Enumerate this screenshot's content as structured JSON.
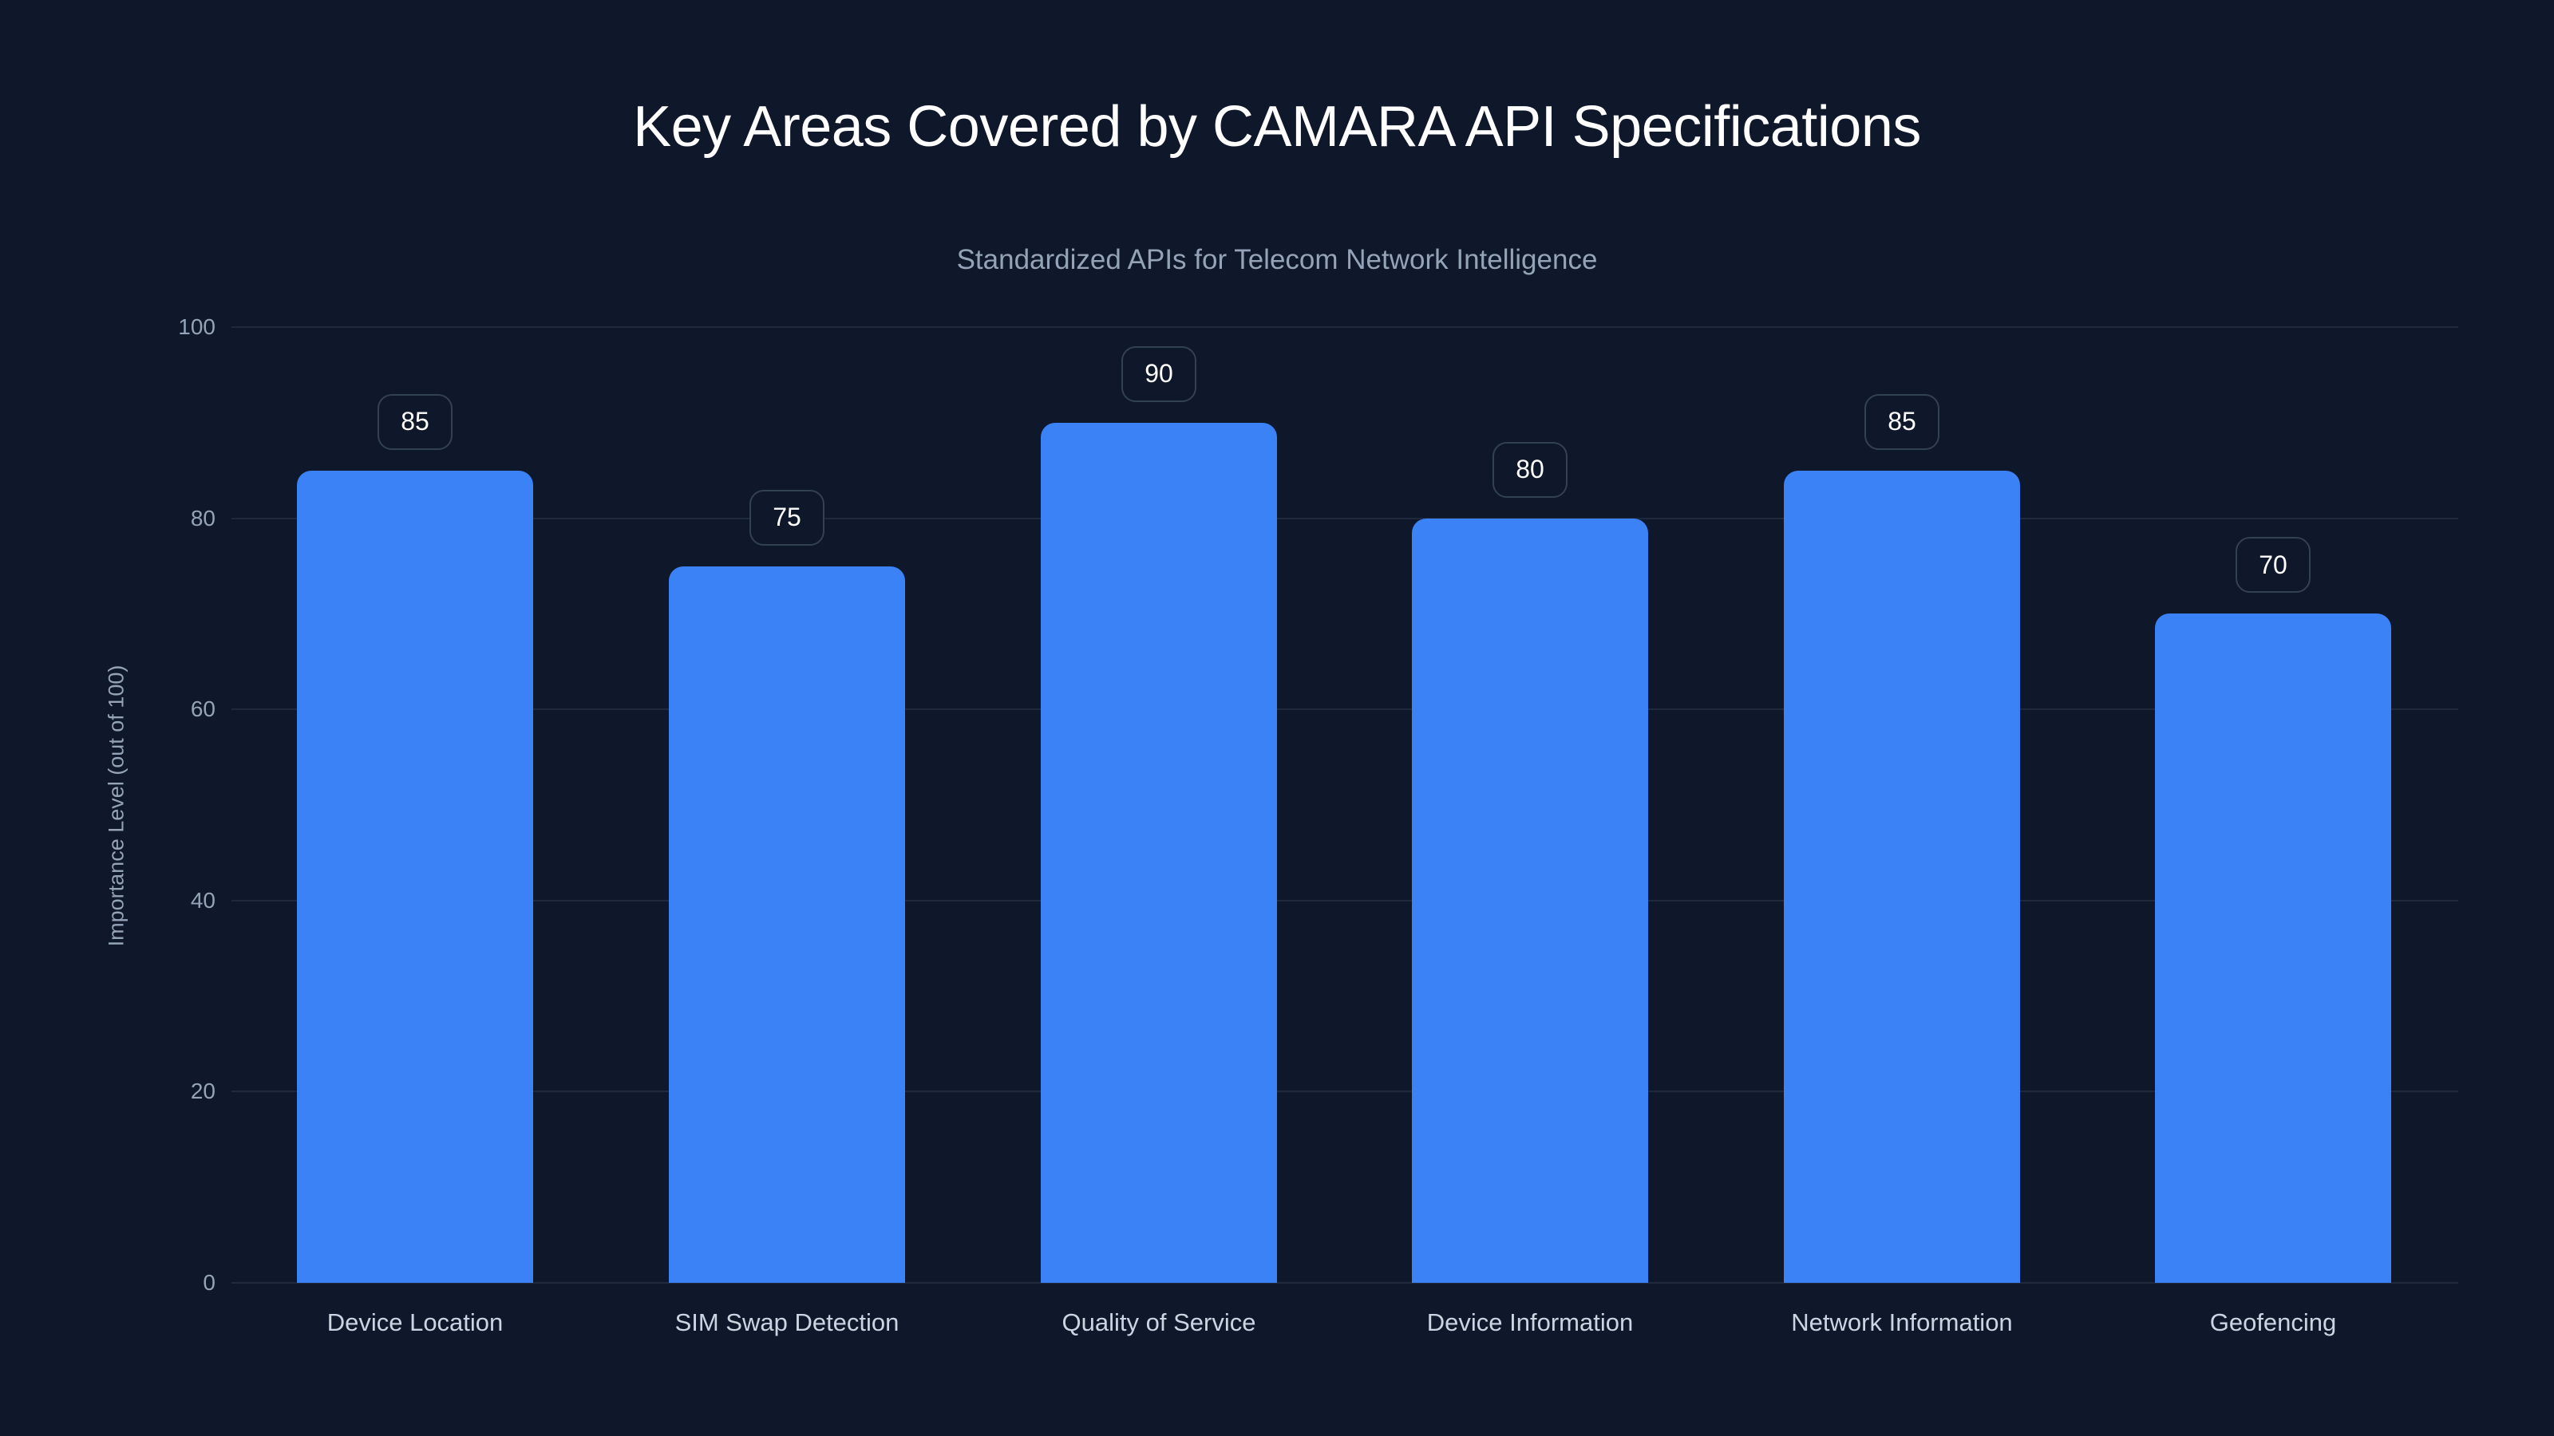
{
  "chart_data": {
    "type": "bar",
    "title": "Key Areas Covered by CAMARA API Specifications",
    "subtitle": "Standardized APIs for Telecom Network Intelligence",
    "xlabel": "",
    "ylabel": "Importance Level (out of 100)",
    "categories": [
      "Device Location",
      "SIM Swap Detection",
      "Quality of Service",
      "Device Information",
      "Network Information",
      "Geofencing"
    ],
    "values": [
      85,
      75,
      90,
      80,
      85,
      70
    ],
    "ylim": [
      0,
      100
    ],
    "yticks": [
      0,
      20,
      40,
      60,
      80,
      100
    ],
    "grid": true,
    "legend": null,
    "data_labels": true,
    "colors": {
      "background": "#0f172a",
      "bar": "#3b82f6",
      "grid": "#1e293b",
      "title": "#ffffff",
      "subtitle": "#94a3b8",
      "axis_text": "#94a3b8",
      "category_text": "#cbd5e1",
      "badge_border": "#334155"
    }
  },
  "labels": {
    "title": "Key Areas Covered by CAMARA API Specifications",
    "subtitle": "Standardized APIs for Telecom Network Intelligence",
    "ylabel": "Importance Level (out of 100)",
    "yticks": [
      "0",
      "20",
      "40",
      "60",
      "80",
      "100"
    ],
    "categories": [
      "Device Location",
      "SIM Swap Detection",
      "Quality of Service",
      "Device Information",
      "Network Information",
      "Geofencing"
    ],
    "values": [
      "85",
      "75",
      "90",
      "80",
      "85",
      "70"
    ]
  }
}
